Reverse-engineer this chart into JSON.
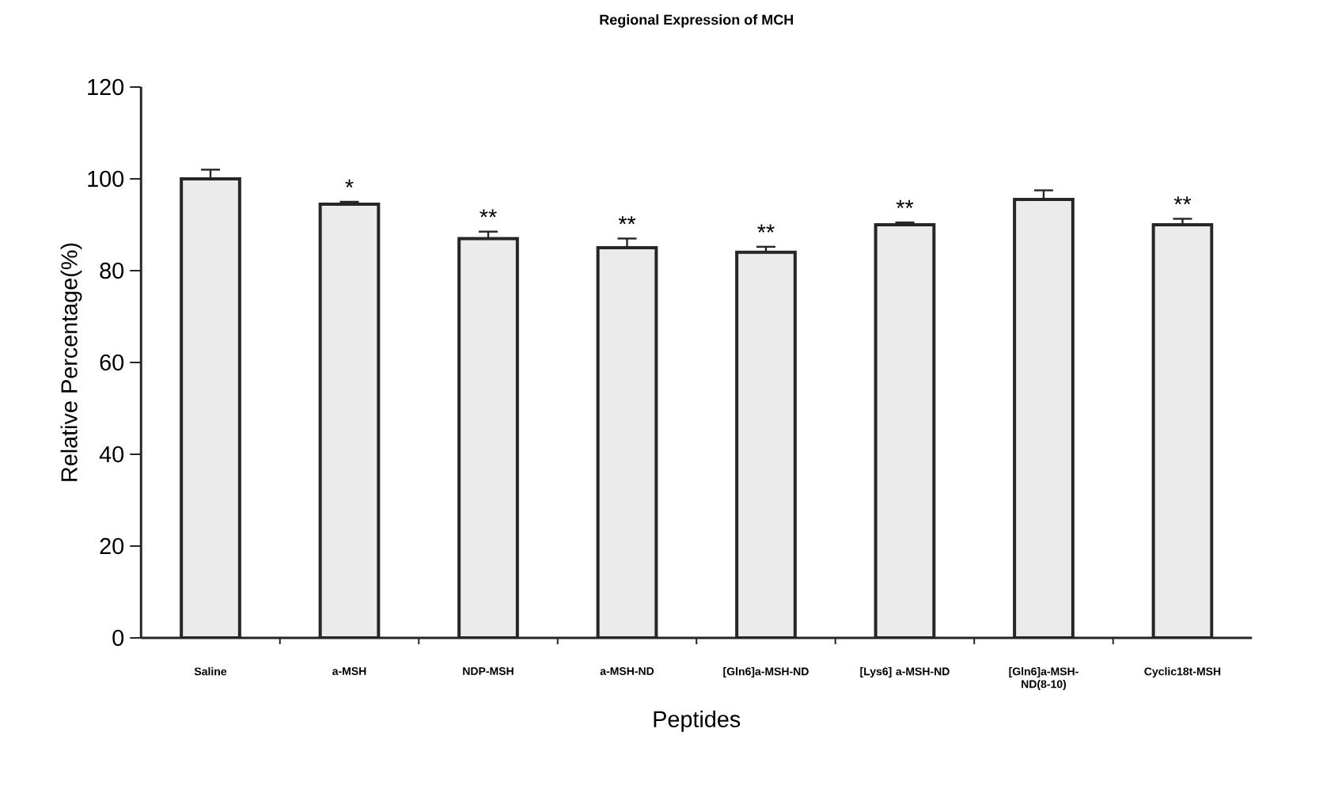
{
  "chart_data": {
    "type": "bar",
    "title": "Regional Expression of MCH",
    "xlabel": "Peptides",
    "ylabel": "Relative Percentage(%)",
    "categories": [
      "Saline",
      "a-MSH",
      "NDP-MSH",
      "a-MSH-ND",
      "[Gln6]a-MSH-ND",
      "[Lys6] a-MSH-ND",
      "[Gln6]a-MSH-ND(8-10)",
      "Cyclic18t-MSH"
    ],
    "values": [
      100,
      94.5,
      87,
      85,
      84,
      90,
      95.5,
      90
    ],
    "errors": [
      2,
      0.5,
      1.5,
      2,
      1.2,
      0.5,
      2,
      1.3
    ],
    "color": "#ebebeb",
    "ylim": [
      0,
      120
    ],
    "yticks": [
      0,
      20,
      40,
      60,
      80,
      100,
      120
    ],
    "annotations": [
      {
        "text": "*",
        "x": "a-MSH",
        "y": 95
      },
      {
        "text": "**",
        "x": "NDP-MSH",
        "y": 88.5
      },
      {
        "text": "**",
        "x": "a-MSH-ND",
        "y": 87
      },
      {
        "text": "**",
        "x": "[Gln6]a-MSH-ND",
        "y": 85.2
      },
      {
        "text": "**",
        "x": "[Lys6] a-MSH-ND",
        "y": 90.5
      },
      {
        "text": "**",
        "x": "Cyclic18t-MSH",
        "y": 91.3
      }
    ]
  }
}
